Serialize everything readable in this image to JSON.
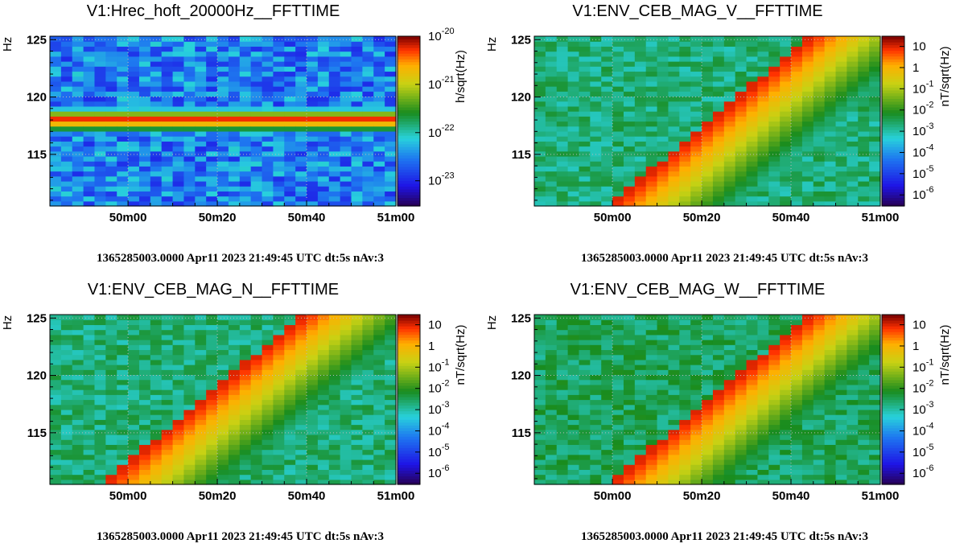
{
  "time_info": "1365285003.0000 Apr11 2023 21:49:45 UTC",
  "params": "dt:5s nAv:3",
  "chart_data": [
    {
      "type": "heatmap",
      "title": "V1:Hrec_hoft_20000Hz__FFTTIME",
      "ylabel": "Hz",
      "colorbar_label": "h/sqrt(Hz)",
      "colorscale": "log",
      "colorbar_range": [
        3e-24,
        1e-20
      ],
      "colorbar_ticks": [
        {
          "value": 1e-20,
          "mantissa": "10",
          "exp": "-20"
        },
        {
          "value": 1e-21,
          "mantissa": "10",
          "exp": "-21"
        },
        {
          "value": 1e-22,
          "mantissa": "10",
          "exp": "-22"
        },
        {
          "value": 1e-23,
          "mantissa": "10",
          "exp": "-23"
        }
      ],
      "xticklabels": [
        "50m00",
        "50m20",
        "50m40",
        "51m00"
      ],
      "xticks_s": [
        0,
        20,
        40,
        60
      ],
      "xlim_s": [
        -17.5,
        60
      ],
      "ylim": [
        110.5,
        125.3
      ],
      "yticks": [
        115,
        120,
        125
      ],
      "grid": true,
      "features": [
        {
          "kind": "constant_line",
          "frequency_hz": 118,
          "amplitude": 1e-20
        },
        {
          "kind": "background",
          "amplitude": 3e-23
        }
      ]
    },
    {
      "type": "heatmap",
      "title": "V1:ENV_CEB_MAG_V__FFTTIME",
      "ylabel": "Hz",
      "colorbar_label": "nT/sqrt(Hz)",
      "colorscale": "log",
      "colorbar_range": [
        3e-07,
        30
      ],
      "colorbar_ticks": [
        {
          "value": 10,
          "mantissa": "10",
          "exp": ""
        },
        {
          "value": 1,
          "mantissa": "1",
          "exp": ""
        },
        {
          "value": 0.1,
          "mantissa": "10",
          "exp": "-1"
        },
        {
          "value": 0.01,
          "mantissa": "10",
          "exp": "-2"
        },
        {
          "value": 0.001,
          "mantissa": "10",
          "exp": "-3"
        },
        {
          "value": 0.0001,
          "mantissa": "10",
          "exp": "-4"
        },
        {
          "value": 1e-05,
          "mantissa": "10",
          "exp": "-5"
        },
        {
          "value": 1e-06,
          "mantissa": "10",
          "exp": "-6"
        }
      ],
      "xticklabels": [
        "50m00",
        "50m20",
        "50m40",
        "51m00"
      ],
      "xticks_s": [
        0,
        20,
        40,
        60
      ],
      "xlim_s": [
        -17.5,
        60
      ],
      "ylim": [
        110.5,
        125.3
      ],
      "yticks": [
        115,
        120,
        125
      ],
      "grid": true,
      "features": [
        {
          "kind": "chirp",
          "start_time_s": 0,
          "start_freq_hz": 110.5,
          "end_time_s": 45,
          "end_freq_hz": 125.3,
          "peak_amplitude": 10
        },
        {
          "kind": "background",
          "amplitude": 0.002
        }
      ]
    },
    {
      "type": "heatmap",
      "title": "V1:ENV_CEB_MAG_N__FFTTIME",
      "ylabel": "Hz",
      "colorbar_label": "nT/sqrt(Hz)",
      "colorscale": "log",
      "colorbar_range": [
        3e-07,
        30
      ],
      "colorbar_ticks": [
        {
          "value": 10,
          "mantissa": "10",
          "exp": ""
        },
        {
          "value": 1,
          "mantissa": "1",
          "exp": ""
        },
        {
          "value": 0.1,
          "mantissa": "10",
          "exp": "-1"
        },
        {
          "value": 0.01,
          "mantissa": "10",
          "exp": "-2"
        },
        {
          "value": 0.001,
          "mantissa": "10",
          "exp": "-3"
        },
        {
          "value": 0.0001,
          "mantissa": "10",
          "exp": "-4"
        },
        {
          "value": 1e-05,
          "mantissa": "10",
          "exp": "-5"
        },
        {
          "value": 1e-06,
          "mantissa": "10",
          "exp": "-6"
        }
      ],
      "xticklabels": [
        "50m00",
        "50m20",
        "50m40",
        "51m00"
      ],
      "xticks_s": [
        0,
        20,
        40,
        60
      ],
      "xlim_s": [
        -17.5,
        60
      ],
      "ylim": [
        110.5,
        125.3
      ],
      "yticks": [
        115,
        120,
        125
      ],
      "grid": true,
      "features": [
        {
          "kind": "chirp",
          "start_time_s": -5,
          "start_freq_hz": 110.5,
          "end_time_s": 40,
          "end_freq_hz": 125.3,
          "peak_amplitude": 10
        },
        {
          "kind": "background",
          "amplitude": 0.002
        }
      ]
    },
    {
      "type": "heatmap",
      "title": "V1:ENV_CEB_MAG_W__FFTTIME",
      "ylabel": "Hz",
      "colorbar_label": "nT/sqrt(Hz)",
      "colorscale": "log",
      "colorbar_range": [
        3e-07,
        30
      ],
      "colorbar_ticks": [
        {
          "value": 10,
          "mantissa": "10",
          "exp": ""
        },
        {
          "value": 1,
          "mantissa": "1",
          "exp": ""
        },
        {
          "value": 0.1,
          "mantissa": "10",
          "exp": "-1"
        },
        {
          "value": 0.01,
          "mantissa": "10",
          "exp": "-2"
        },
        {
          "value": 0.001,
          "mantissa": "10",
          "exp": "-3"
        },
        {
          "value": 0.0001,
          "mantissa": "10",
          "exp": "-4"
        },
        {
          "value": 1e-05,
          "mantissa": "10",
          "exp": "-5"
        },
        {
          "value": 1e-06,
          "mantissa": "10",
          "exp": "-6"
        }
      ],
      "xticklabels": [
        "50m00",
        "50m20",
        "50m40",
        "51m00"
      ],
      "xticks_s": [
        0,
        20,
        40,
        60
      ],
      "xlim_s": [
        -17.5,
        60
      ],
      "ylim": [
        110.5,
        125.3
      ],
      "yticks": [
        115,
        120,
        125
      ],
      "grid": true,
      "features": [
        {
          "kind": "chirp",
          "start_time_s": 0,
          "start_freq_hz": 110.5,
          "end_time_s": 45,
          "end_freq_hz": 125.3,
          "peak_amplitude": 10
        },
        {
          "kind": "background",
          "amplitude": 0.003
        }
      ]
    }
  ]
}
